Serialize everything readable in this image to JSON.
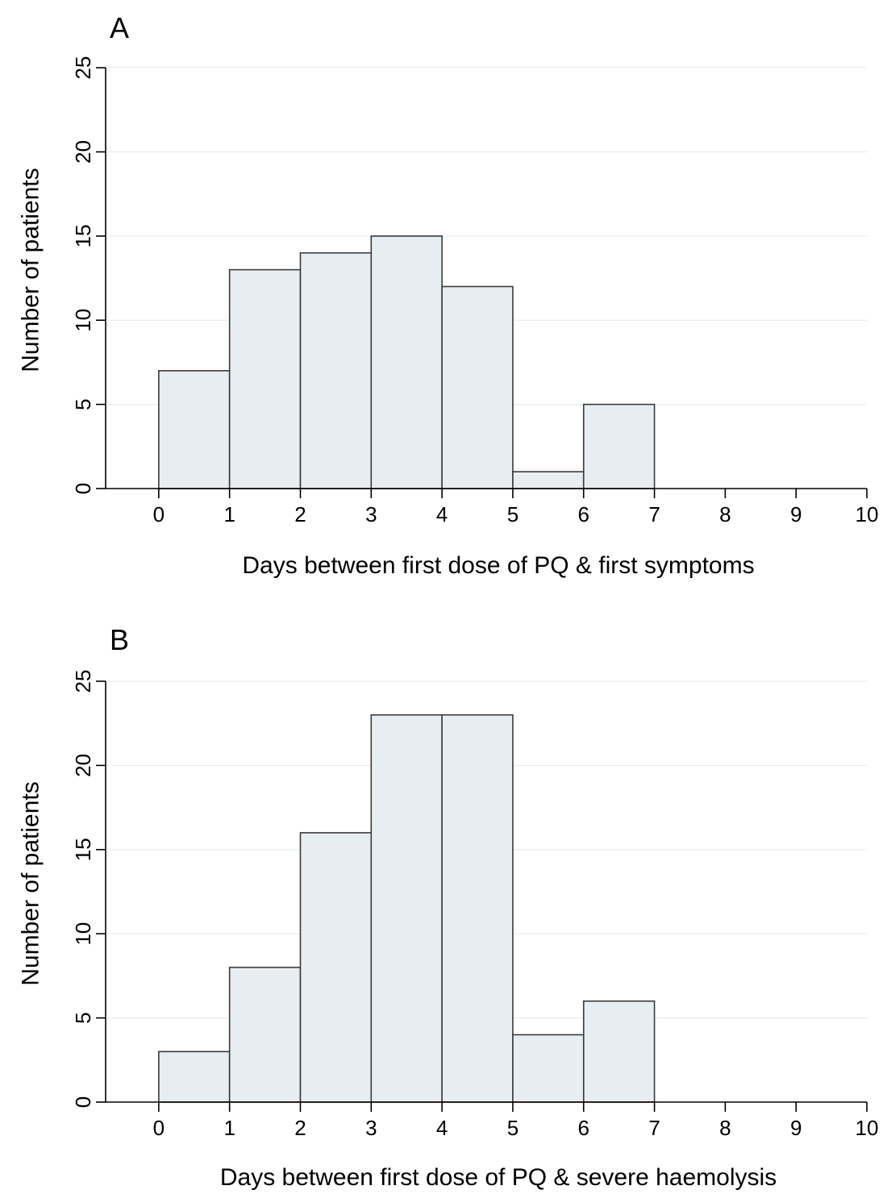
{
  "chart_data": [
    {
      "type": "bar",
      "panel_label": "A",
      "title": "",
      "xlabel": "Days between first dose of PQ & first symptoms",
      "ylabel": "Number of patients",
      "xlim": [
        -0.75,
        10
      ],
      "ylim": [
        0,
        25
      ],
      "xticks": [
        "0",
        "1",
        "2",
        "3",
        "4",
        "5",
        "6",
        "7",
        "8",
        "9",
        "10"
      ],
      "yticks": [
        "0",
        "5",
        "10",
        "15",
        "20",
        "25"
      ],
      "bins": [
        [
          0,
          1
        ],
        [
          1,
          2
        ],
        [
          2,
          3
        ],
        [
          3,
          4
        ],
        [
          4,
          5
        ],
        [
          5,
          6
        ],
        [
          6,
          7
        ]
      ],
      "values": [
        7,
        13,
        14,
        15,
        12,
        1,
        5
      ],
      "grid": true
    },
    {
      "type": "bar",
      "panel_label": "B",
      "title": "",
      "xlabel": "Days between first dose of PQ & severe haemolysis",
      "ylabel": "Number of patients",
      "xlim": [
        -0.75,
        10
      ],
      "ylim": [
        0,
        25
      ],
      "xticks": [
        "0",
        "1",
        "2",
        "3",
        "4",
        "5",
        "6",
        "7",
        "8",
        "9",
        "10"
      ],
      "yticks": [
        "0",
        "5",
        "10",
        "15",
        "20",
        "25"
      ],
      "bins": [
        [
          0,
          1
        ],
        [
          1,
          2
        ],
        [
          2,
          3
        ],
        [
          3,
          4
        ],
        [
          4,
          5
        ],
        [
          5,
          6
        ],
        [
          6,
          7
        ]
      ],
      "values": [
        3,
        8,
        16,
        23,
        23,
        4,
        6
      ],
      "grid": true
    }
  ],
  "colors": {
    "bar_fill": "#e7eef1",
    "bar_edge": "#3b3b3b",
    "grid": "#e6ecef",
    "axis": "#000000"
  }
}
